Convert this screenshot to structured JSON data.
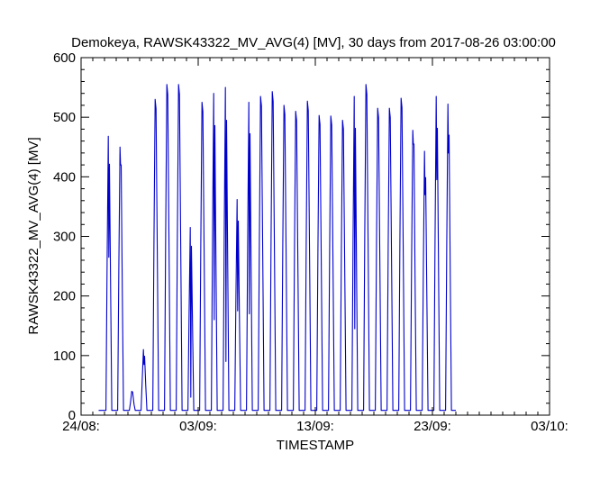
{
  "chart_data": {
    "type": "line",
    "title": "Demokeya, RAWSK43322_MV_AVG(4) [MV], 30 days from  2017-08-26 03:00:00",
    "xlabel": "TIMESTAMP",
    "ylabel": "RAWSK43322_MV_AVG(4) [MV]",
    "ylim": [
      0,
      600
    ],
    "yticks": [
      0,
      100,
      200,
      300,
      400,
      500,
      600
    ],
    "xlim": [
      "2017-08-24",
      "2017-10-03"
    ],
    "xticks": [
      {
        "date": "2017-08-24",
        "label": "24/08:"
      },
      {
        "date": "2017-09-03",
        "label": "03/09:"
      },
      {
        "date": "2017-09-13",
        "label": "13/09:"
      },
      {
        "date": "2017-09-23",
        "label": "23/09:"
      },
      {
        "date": "2017-10-03",
        "label": "03/10:"
      }
    ],
    "grid": false,
    "line_color": "#0000cc",
    "baseline": 8,
    "series": [
      {
        "daily_peaks": [
          {
            "date": "2017-08-26",
            "peak": 468,
            "dip": 265
          },
          {
            "date": "2017-08-27",
            "peak": 450,
            "dip": 420
          },
          {
            "date": "2017-08-28",
            "peak": 40,
            "dip": null
          },
          {
            "date": "2017-08-29",
            "peak": 110,
            "dip": 85
          },
          {
            "date": "2017-08-30",
            "peak": 530,
            "dip": null
          },
          {
            "date": "2017-08-31",
            "peak": 555,
            "dip": null
          },
          {
            "date": "2017-09-01",
            "peak": 555,
            "dip": null
          },
          {
            "date": "2017-09-02",
            "peak": 315,
            "dip": 30
          },
          {
            "date": "2017-09-03",
            "peak": 525,
            "dip": null
          },
          {
            "date": "2017-09-04",
            "peak": 540,
            "dip": 160
          },
          {
            "date": "2017-09-05",
            "peak": 550,
            "dip": 90
          },
          {
            "date": "2017-09-06",
            "peak": 362,
            "dip": 175
          },
          {
            "date": "2017-09-07",
            "peak": 525,
            "dip": 170
          },
          {
            "date": "2017-09-08",
            "peak": 535,
            "dip": null
          },
          {
            "date": "2017-09-09",
            "peak": 543,
            "dip": null
          },
          {
            "date": "2017-09-10",
            "peak": 520,
            "dip": null
          },
          {
            "date": "2017-09-11",
            "peak": 510,
            "dip": null
          },
          {
            "date": "2017-09-12",
            "peak": 527,
            "dip": null
          },
          {
            "date": "2017-09-13",
            "peak": 503,
            "dip": null
          },
          {
            "date": "2017-09-14",
            "peak": 502,
            "dip": null
          },
          {
            "date": "2017-09-15",
            "peak": 495,
            "dip": null
          },
          {
            "date": "2017-09-16",
            "peak": 535,
            "dip": 145
          },
          {
            "date": "2017-09-17",
            "peak": 555,
            "dip": null
          },
          {
            "date": "2017-09-18",
            "peak": 515,
            "dip": null
          },
          {
            "date": "2017-09-19",
            "peak": 515,
            "dip": null
          },
          {
            "date": "2017-09-20",
            "peak": 532,
            "dip": null
          },
          {
            "date": "2017-09-21",
            "peak": 478,
            "dip": 455
          },
          {
            "date": "2017-09-22",
            "peak": 443,
            "dip": 370
          },
          {
            "date": "2017-09-23",
            "peak": 535,
            "dip": 395
          },
          {
            "date": "2017-09-24",
            "peak": 522,
            "dip": 440
          }
        ],
        "data_end": "2017-09-25"
      }
    ]
  }
}
